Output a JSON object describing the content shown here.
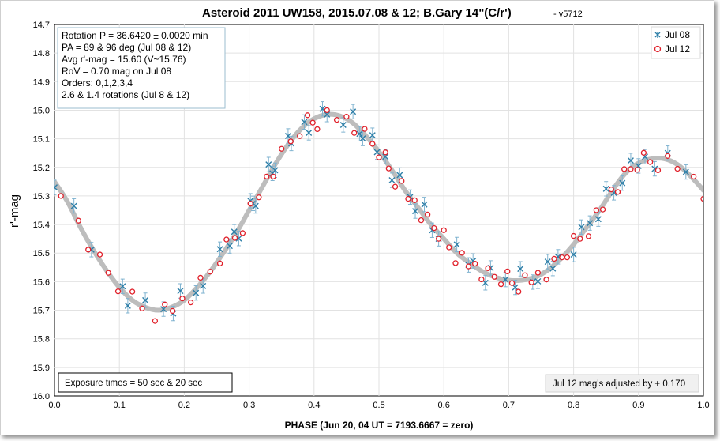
{
  "chart_data": {
    "type": "scatter",
    "title": "Asteroid 2011 UW158, 2015.07.08 & 12; B.Gary 14\"(C/r')",
    "subtitle": "- v5712",
    "xlabel": "PHASE (Jun 20, 04 UT = 7193.6667 = zero)",
    "ylabel": "r'-mag",
    "xlim": [
      0.0,
      1.0
    ],
    "ylim": [
      14.7,
      16.0
    ],
    "y_inverted": true,
    "grid": true,
    "x_ticks": [
      "0.0",
      "0.1",
      "0.2",
      "0.3",
      "0.4",
      "0.5",
      "0.6",
      "0.7",
      "0.8",
      "0.9",
      "1.0"
    ],
    "y_ticks": [
      "14.7",
      "14.8",
      "14.9",
      "15.0",
      "15.1",
      "15.2",
      "15.3",
      "15.4",
      "15.5",
      "15.6",
      "15.7",
      "15.8",
      "15.9",
      "16.0"
    ],
    "legend_position": "top-right",
    "info_lines": [
      "Rotation P = 36.6420 ± 0.0020 min",
      "PA =  89 & 96 deg  (Jul 08 & 12)",
      "Avg r'-mag = 15.60 (V~15.76)",
      "RoV = 0.70 mag on Jul 08",
      "Orders: 0,1,2,3,4",
      "2.6 & 1.4 rotations (Jul 8 & 12)"
    ],
    "exposure_note": "Exposure times = 50 sec & 20 sec",
    "adjust_note": "Jul 12 mag's adjusted by + 0.170",
    "series": [
      {
        "name": "Jul 08",
        "marker": "x",
        "color": "#2e7fa8",
        "errorbar_color": "#7fb3d0",
        "error": 0.017,
        "x": [
          0.0,
          0.03,
          0.057,
          0.105,
          0.113,
          0.14,
          0.168,
          0.183,
          0.194,
          0.218,
          0.229,
          0.255,
          0.27,
          0.277,
          0.284,
          0.302,
          0.306,
          0.31,
          0.33,
          0.336,
          0.34,
          0.36,
          0.365,
          0.385,
          0.392,
          0.413,
          0.42,
          0.445,
          0.46,
          0.47,
          0.475,
          0.49,
          0.497,
          0.51,
          0.52,
          0.532,
          0.548,
          0.556,
          0.57,
          0.582,
          0.592,
          0.62,
          0.638,
          0.645,
          0.664,
          0.672,
          0.695,
          0.71,
          0.718,
          0.737,
          0.745,
          0.76,
          0.768,
          0.776,
          0.8,
          0.812,
          0.825,
          0.838,
          0.85,
          0.862,
          0.875,
          0.888,
          0.9,
          0.91,
          0.925,
          0.945,
          0.973
        ]
      },
      {
        "name": "Jul 12",
        "marker": "o",
        "color": "#e0202a",
        "x": [
          0.01,
          0.037,
          0.052,
          0.07,
          0.083,
          0.098,
          0.12,
          0.135,
          0.155,
          0.17,
          0.182,
          0.197,
          0.21,
          0.225,
          0.24,
          0.255,
          0.265,
          0.278,
          0.29,
          0.302,
          0.315,
          0.327,
          0.337,
          0.35,
          0.364,
          0.378,
          0.39,
          0.398,
          0.405,
          0.42,
          0.435,
          0.45,
          0.462,
          0.478,
          0.49,
          0.5,
          0.51,
          0.515,
          0.525,
          0.535,
          0.545,
          0.555,
          0.565,
          0.575,
          0.585,
          0.592,
          0.6,
          0.608,
          0.618,
          0.628,
          0.638,
          0.648,
          0.658,
          0.668,
          0.678,
          0.688,
          0.698,
          0.705,
          0.715,
          0.725,
          0.735,
          0.745,
          0.758,
          0.77,
          0.782,
          0.79,
          0.8,
          0.81,
          0.823,
          0.835,
          0.845,
          0.858,
          0.868,
          0.878,
          0.888,
          0.898,
          0.908,
          0.918,
          0.93,
          0.945,
          0.96,
          0.985,
          1.0
        ]
      }
    ],
    "fit_curve": {
      "name": "fit",
      "color": "#bdbdbd",
      "x": [
        0.0,
        0.02,
        0.04,
        0.06,
        0.08,
        0.1,
        0.12,
        0.14,
        0.16,
        0.18,
        0.2,
        0.22,
        0.24,
        0.26,
        0.28,
        0.3,
        0.32,
        0.34,
        0.36,
        0.38,
        0.4,
        0.42,
        0.44,
        0.46,
        0.48,
        0.5,
        0.52,
        0.54,
        0.56,
        0.58,
        0.6,
        0.62,
        0.64,
        0.66,
        0.68,
        0.7,
        0.72,
        0.74,
        0.76,
        0.78,
        0.8,
        0.82,
        0.84,
        0.86,
        0.88,
        0.9,
        0.92,
        0.94,
        0.96,
        0.98,
        1.0
      ],
      "y": [
        15.25,
        15.32,
        15.41,
        15.49,
        15.56,
        15.62,
        15.665,
        15.69,
        15.7,
        15.69,
        15.665,
        15.62,
        15.565,
        15.5,
        15.43,
        15.35,
        15.27,
        15.19,
        15.12,
        15.065,
        15.03,
        15.015,
        15.02,
        15.045,
        15.09,
        15.145,
        15.21,
        15.28,
        15.34,
        15.4,
        15.45,
        15.5,
        15.535,
        15.565,
        15.585,
        15.595,
        15.595,
        15.585,
        15.56,
        15.52,
        15.47,
        15.41,
        15.35,
        15.28,
        15.22,
        15.185,
        15.17,
        15.17,
        15.19,
        15.23,
        15.28
      ]
    }
  }
}
